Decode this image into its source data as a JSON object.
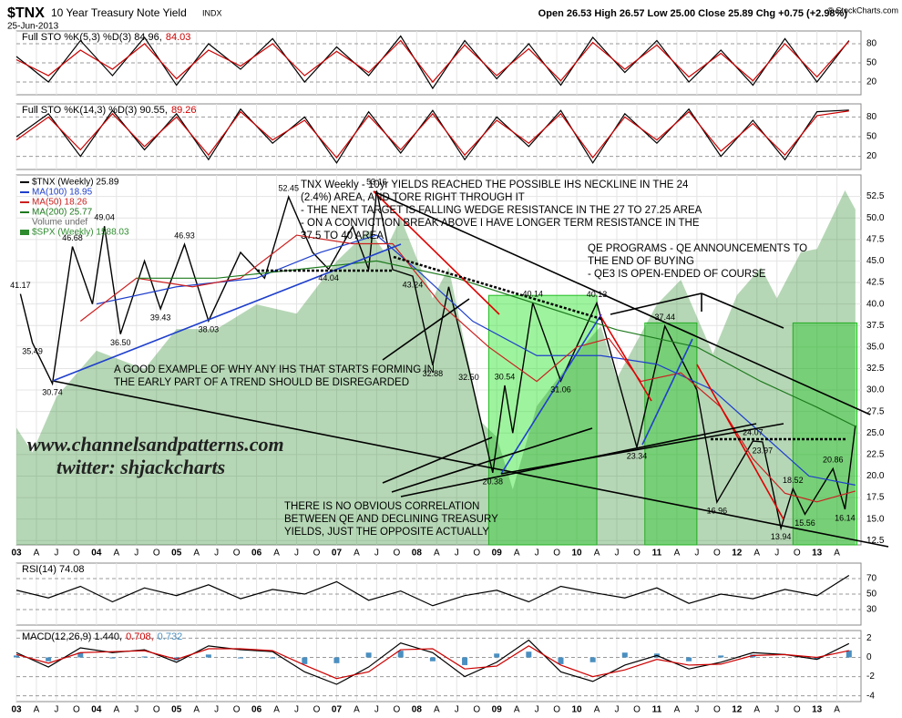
{
  "header": {
    "symbol": "$TNX",
    "name": "10 Year Treasury Note Yield",
    "exchange": "INDX",
    "date": "25-Jun-2013",
    "quote": "Open 26.53  High 26.57  Low 25.00  Close 25.89  Chg +0.75 (+2.98%)",
    "credit": "© StockCharts.com"
  },
  "chart_data": [
    {
      "type": "line",
      "legend": [
        {
          "text": "Full STO %K(5,3) %D(3) 84.96,",
          "color": "#000000"
        },
        {
          "text": "84.03",
          "color": "#cc0000"
        }
      ],
      "ylim": [
        0,
        100
      ],
      "yticks": [
        20,
        50,
        80
      ],
      "x": [
        2003.0,
        2003.4,
        2003.8,
        2004.2,
        2004.6,
        2005.0,
        2005.4,
        2005.8,
        2006.2,
        2006.6,
        2007.0,
        2007.4,
        2007.8,
        2008.2,
        2008.6,
        2009.0,
        2009.4,
        2009.8,
        2010.2,
        2010.6,
        2011.0,
        2011.4,
        2011.8,
        2012.2,
        2012.6,
        2013.0,
        2013.4
      ],
      "series": [
        {
          "color": "#000000",
          "values": [
            60,
            20,
            85,
            30,
            90,
            15,
            80,
            40,
            88,
            20,
            75,
            30,
            92,
            10,
            85,
            25,
            80,
            15,
            90,
            35,
            85,
            20,
            70,
            15,
            88,
            20,
            84.96
          ]
        },
        {
          "color": "#cc0000",
          "values": [
            55,
            30,
            70,
            40,
            80,
            25,
            70,
            45,
            80,
            30,
            68,
            35,
            85,
            20,
            78,
            30,
            72,
            22,
            82,
            40,
            78,
            28,
            65,
            22,
            80,
            28,
            84.03
          ]
        }
      ]
    },
    {
      "type": "line",
      "legend": [
        {
          "text": "Full STO %K(14,3) %D(3) 90.55,",
          "color": "#000000"
        },
        {
          "text": "89.26",
          "color": "#cc0000"
        }
      ],
      "ylim": [
        0,
        100
      ],
      "yticks": [
        20,
        50,
        80
      ],
      "x": [
        2003.0,
        2003.4,
        2003.8,
        2004.2,
        2004.6,
        2005.0,
        2005.4,
        2005.8,
        2006.2,
        2006.6,
        2007.0,
        2007.4,
        2007.8,
        2008.2,
        2008.6,
        2009.0,
        2009.4,
        2009.8,
        2010.2,
        2010.6,
        2011.0,
        2011.4,
        2011.8,
        2012.2,
        2012.6,
        2013.0,
        2013.4
      ],
      "series": [
        {
          "color": "#000000",
          "values": [
            50,
            85,
            20,
            90,
            30,
            85,
            15,
            92,
            40,
            80,
            10,
            88,
            25,
            90,
            15,
            80,
            35,
            90,
            10,
            85,
            40,
            92,
            20,
            75,
            15,
            88,
            90.55
          ]
        },
        {
          "color": "#cc0000",
          "values": [
            45,
            80,
            30,
            85,
            35,
            80,
            22,
            88,
            45,
            75,
            18,
            82,
            30,
            85,
            22,
            75,
            40,
            85,
            18,
            80,
            45,
            88,
            28,
            70,
            22,
            82,
            89.26
          ]
        }
      ]
    },
    {
      "type": "line",
      "xlim": [
        2003.0,
        2013.55
      ],
      "ylim": [
        12,
        55
      ],
      "y2lim": [
        500,
        1700
      ],
      "yticks": [
        {
          "value": 12.5,
          "label": "12.5"
        },
        {
          "value": 15,
          "label": "15.0"
        },
        {
          "value": 17.5,
          "label": "17.5"
        },
        {
          "value": 20,
          "label": "20.0"
        },
        {
          "value": 22.5,
          "label": "22.5"
        },
        {
          "value": 25,
          "label": "25.0"
        },
        {
          "value": 27.5,
          "label": "27.5"
        },
        {
          "value": 30,
          "label": "30.0"
        },
        {
          "value": 32.5,
          "label": "32.5"
        },
        {
          "value": 35,
          "label": "35.0"
        },
        {
          "value": 37.5,
          "label": "37.5"
        },
        {
          "value": 40,
          "label": "40.0"
        },
        {
          "value": 42.5,
          "label": "42.5"
        },
        {
          "value": 45,
          "label": "45.0"
        },
        {
          "value": 47.5,
          "label": "47.5"
        },
        {
          "value": 50,
          "label": "50.0"
        },
        {
          "value": 52.5,
          "label": "52.5"
        }
      ],
      "xticks": [
        {
          "value": 2003,
          "label": "03"
        },
        {
          "value": 2003.25,
          "label": "A"
        },
        {
          "value": 2003.5,
          "label": "J"
        },
        {
          "value": 2003.75,
          "label": "O"
        },
        {
          "value": 2004,
          "label": "04"
        },
        {
          "value": 2004.25,
          "label": "A"
        },
        {
          "value": 2004.5,
          "label": "J"
        },
        {
          "value": 2004.75,
          "label": "O"
        },
        {
          "value": 2005,
          "label": "05"
        },
        {
          "value": 2005.25,
          "label": "A"
        },
        {
          "value": 2005.5,
          "label": "J"
        },
        {
          "value": 2005.75,
          "label": "O"
        },
        {
          "value": 2006,
          "label": "06"
        },
        {
          "value": 2006.25,
          "label": "A"
        },
        {
          "value": 2006.5,
          "label": "J"
        },
        {
          "value": 2006.75,
          "label": "O"
        },
        {
          "value": 2007,
          "label": "07"
        },
        {
          "value": 2007.25,
          "label": "A"
        },
        {
          "value": 2007.5,
          "label": "J"
        },
        {
          "value": 2007.75,
          "label": "O"
        },
        {
          "value": 2008,
          "label": "08"
        },
        {
          "value": 2008.25,
          "label": "A"
        },
        {
          "value": 2008.5,
          "label": "J"
        },
        {
          "value": 2008.75,
          "label": "O"
        },
        {
          "value": 2009,
          "label": "09"
        },
        {
          "value": 2009.25,
          "label": "A"
        },
        {
          "value": 2009.5,
          "label": "J"
        },
        {
          "value": 2009.75,
          "label": "O"
        },
        {
          "value": 2010,
          "label": "10"
        },
        {
          "value": 2010.25,
          "label": "A"
        },
        {
          "value": 2010.5,
          "label": "J"
        },
        {
          "value": 2010.75,
          "label": "O"
        },
        {
          "value": 2011,
          "label": "11"
        },
        {
          "value": 2011.25,
          "label": "A"
        },
        {
          "value": 2011.5,
          "label": "J"
        },
        {
          "value": 2011.75,
          "label": "O"
        },
        {
          "value": 2012,
          "label": "12"
        },
        {
          "value": 2012.25,
          "label": "A"
        },
        {
          "value": 2012.5,
          "label": "J"
        },
        {
          "value": 2012.75,
          "label": "O"
        },
        {
          "value": 2013,
          "label": "13"
        },
        {
          "value": 2013.25,
          "label": "A"
        }
      ],
      "qe_zones": [
        [
          2008.9,
          2010.25,
          41
        ],
        [
          2010.85,
          2011.5,
          37.8
        ],
        [
          2012.7,
          2013.5,
          37.8
        ]
      ],
      "volume_note": "Volume undef",
      "series": [
        {
          "name": "$TNX (Weekly) 25.89",
          "color": "#000000",
          "x": [
            2003.05,
            2003.2,
            2003.45,
            2003.7,
            2003.95,
            2004.1,
            2004.3,
            2004.6,
            2004.8,
            2005.1,
            2005.4,
            2005.8,
            2006.1,
            2006.4,
            2006.7,
            2006.9,
            2007.2,
            2007.4,
            2007.5,
            2007.7,
            2007.95,
            2008.2,
            2008.4,
            2008.65,
            2008.95,
            2009.1,
            2009.2,
            2009.45,
            2009.8,
            2010.25,
            2010.75,
            2011.1,
            2011.5,
            2011.75,
            2012.2,
            2012.32,
            2012.55,
            2012.7,
            2012.85,
            2013.2,
            2013.35,
            2013.48
          ],
          "values": [
            41.17,
            35.49,
            30.74,
            46.68,
            40,
            49.04,
            36.5,
            45,
            39.43,
            46.93,
            38.03,
            46,
            43,
            52.45,
            46,
            44.04,
            49,
            44,
            53.16,
            44,
            43.24,
            32.88,
            42,
            32.5,
            20.38,
            30.54,
            25,
            40.14,
            31.06,
            40.13,
            23.34,
            37.44,
            30,
            16.96,
            24.07,
            23.97,
            13.94,
            18.52,
            15.56,
            20.86,
            16.14,
            25.89
          ],
          "value_labels": [
            "41.17",
            "35.49",
            "30.74",
            "46.68",
            null,
            "49.04",
            "36.50",
            null,
            "39.43",
            "46.93",
            "38.03",
            null,
            null,
            "52.45",
            null,
            "44.04",
            null,
            null,
            "53.16",
            null,
            "43.24",
            "32.88",
            null,
            "32.50",
            "20.38",
            "30.54",
            null,
            "40.14",
            "31.06",
            "40.13",
            "23.34",
            "37.44",
            null,
            "16.96",
            "24.07",
            "23.97",
            "13.94",
            "18.52",
            "15.56",
            "20.86",
            "16.14",
            null
          ]
        },
        {
          "name": "MA(100) 18.95",
          "color": "#1f3fcc",
          "x": [
            2004.0,
            2005.0,
            2006.0,
            2006.8,
            2007.5,
            2008.0,
            2008.7,
            2009.5,
            2010.3,
            2011.0,
            2011.7,
            2012.3,
            2012.9,
            2013.48
          ],
          "values": [
            40,
            42,
            43,
            46,
            48,
            44,
            38,
            34,
            34,
            33,
            30,
            25,
            20,
            18.95
          ]
        },
        {
          "name": "MA(50) 18.26",
          "color": "#cc2020",
          "x": [
            2003.8,
            2004.5,
            2005.2,
            2005.8,
            2006.5,
            2007.2,
            2007.7,
            2008.3,
            2008.9,
            2009.5,
            2010.0,
            2010.4,
            2010.8,
            2011.3,
            2011.8,
            2012.2,
            2012.6,
            2013.0,
            2013.48
          ],
          "values": [
            38,
            43,
            42,
            43,
            48,
            47,
            47,
            40,
            35,
            31,
            35,
            36,
            31,
            32,
            28,
            22,
            18,
            17,
            18.26
          ]
        },
        {
          "name": "MA(200) 25.77",
          "color": "#1e7a1e",
          "x": [
            2004.5,
            2005.5,
            2006.5,
            2007.5,
            2008.5,
            2009.5,
            2010.5,
            2011.5,
            2012.3,
            2013.0,
            2013.48
          ],
          "values": [
            43,
            43,
            44,
            45,
            43,
            40,
            37,
            35,
            31,
            28,
            25.77
          ]
        },
        {
          "name": "$SPX (Weekly) 1588.03",
          "color": "#2e8b2e",
          "kind": "area",
          "axis": "y2",
          "x": [
            2003.0,
            2003.2,
            2003.5,
            2004.0,
            2004.6,
            2005.0,
            2005.5,
            2006.0,
            2006.5,
            2007.0,
            2007.4,
            2007.6,
            2007.8,
            2008.2,
            2008.4,
            2008.8,
            2009.0,
            2009.2,
            2009.5,
            2010.0,
            2010.3,
            2010.5,
            2011.0,
            2011.3,
            2011.7,
            2012.0,
            2012.3,
            2012.5,
            2012.8,
            2013.0,
            2013.35,
            2013.48
          ],
          "values": [
            880,
            800,
            980,
            1130,
            1070,
            1200,
            1200,
            1280,
            1250,
            1420,
            1520,
            1450,
            1560,
            1300,
            1400,
            900,
            850,
            680,
            950,
            1120,
            1210,
            1040,
            1280,
            1360,
            1120,
            1310,
            1400,
            1300,
            1450,
            1460,
            1650,
            1588.03
          ]
        }
      ],
      "annotations": [
        {
          "lines": [
            "TNX Weekly - 10yr YIELDS REACHED THE POSSIBLE IHS NECKLINE IN THE 24",
            "(2.4%) AREA, AND TORE RIGHT THROUGH IT",
            "- THE NEXT TARGET IS FALLING WEDGE RESISTANCE IN THE 27 TO 27.25 AREA",
            "- ON A CONVICTION BREAK ABOVE I HAVE LONGER TERM RESISTANCE IN THE",
            "37.5 TO 40 AREA"
          ]
        },
        {
          "lines": [
            "QE PROGRAMS - QE ANNOUNCEMENTS TO",
            "THE END OF BUYING",
            "- QE3 IS OPEN-ENDED OF COURSE"
          ]
        },
        {
          "lines": [
            "A GOOD EXAMPLE OF WHY ANY IHS THAT STARTS FORMING IN",
            "THE EARLY PART OF A TREND SHOULD BE DISREGARDED"
          ]
        },
        {
          "lines": [
            "THERE IS NO OBVIOUS CORRELATION",
            "BETWEEN QE AND DECLINING TREASURY",
            "YIELDS, JUST THE OPPOSITE ACTUALLY"
          ]
        }
      ],
      "watermark": [
        "www.channelsandpatterns.com",
        "twitter: shjackcharts"
      ]
    },
    {
      "type": "line",
      "legend": [
        {
          "text": "RSI(14) 74.08",
          "color": "#000000"
        }
      ],
      "ylim": [
        10,
        90
      ],
      "yticks": [
        30,
        50,
        70
      ],
      "x": [
        2003.0,
        2003.4,
        2003.8,
        2004.2,
        2004.6,
        2005.0,
        2005.4,
        2005.8,
        2006.2,
        2006.6,
        2007.0,
        2007.4,
        2007.8,
        2008.2,
        2008.6,
        2009.0,
        2009.4,
        2009.8,
        2010.2,
        2010.6,
        2011.0,
        2011.4,
        2011.8,
        2012.2,
        2012.6,
        2013.0,
        2013.4
      ],
      "series": [
        {
          "color": "#000000",
          "values": [
            55,
            45,
            60,
            40,
            58,
            48,
            62,
            44,
            56,
            50,
            66,
            42,
            54,
            35,
            48,
            55,
            40,
            60,
            52,
            45,
            58,
            38,
            50,
            44,
            56,
            48,
            74.08
          ]
        }
      ]
    },
    {
      "type": "line",
      "legend": [
        {
          "text": "MACD(12,26,9) 1.440,",
          "color": "#000000"
        },
        {
          "text": "0.708,",
          "color": "#cc0000"
        },
        {
          "text": "0.732",
          "color": "#4a8fc0"
        }
      ],
      "ylim": [
        -4.6,
        2.8
      ],
      "yticks": [
        -4,
        -2,
        0,
        2
      ],
      "x": [
        2003.0,
        2003.4,
        2003.8,
        2004.2,
        2004.6,
        2005.0,
        2005.4,
        2005.8,
        2006.2,
        2006.6,
        2007.0,
        2007.4,
        2007.8,
        2008.2,
        2008.6,
        2009.0,
        2009.4,
        2009.8,
        2010.2,
        2010.6,
        2011.0,
        2011.4,
        2011.8,
        2012.2,
        2012.6,
        2013.0,
        2013.4
      ],
      "series": [
        {
          "color": "#4a8fc0",
          "kind": "bar",
          "values": [
            0.2,
            -0.4,
            0.5,
            -0.1,
            0.1,
            -0.3,
            0.3,
            -0.1,
            -0.1,
            -0.7,
            -0.6,
            0.5,
            0.7,
            -0.4,
            -0.8,
            0.4,
            0.6,
            -0.7,
            -0.5,
            0.5,
            0.4,
            -0.4,
            0.2,
            0.3,
            0,
            -0.2,
            0.732
          ]
        },
        {
          "color": "#000000",
          "values": [
            0.5,
            -1,
            1,
            0.5,
            0.8,
            -0.5,
            1.2,
            0.8,
            0.6,
            -1.5,
            -2.8,
            -1,
            1.5,
            0.5,
            -2,
            -0.5,
            1.8,
            -1.5,
            -2.5,
            -0.8,
            0.2,
            -1.2,
            -0.5,
            0.5,
            0.3,
            -0.2,
            1.44
          ]
        },
        {
          "color": "#cc0000",
          "values": [
            0.3,
            -0.6,
            0.5,
            0.6,
            0.7,
            -0.2,
            0.9,
            0.9,
            0.7,
            -0.8,
            -2.2,
            -1.5,
            0.8,
            0.9,
            -1.2,
            -0.9,
            1.2,
            -0.8,
            -2.0,
            -1.3,
            -0.2,
            -0.8,
            -0.7,
            0.2,
            0.3,
            0,
            0.708
          ]
        }
      ]
    }
  ]
}
